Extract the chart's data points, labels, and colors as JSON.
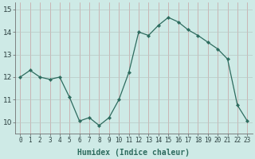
{
  "x": [
    0,
    1,
    2,
    3,
    4,
    5,
    6,
    7,
    8,
    9,
    10,
    11,
    12,
    13,
    14,
    15,
    16,
    17,
    18,
    19,
    20,
    21,
    22,
    23
  ],
  "y": [
    12.0,
    12.3,
    12.0,
    11.9,
    12.0,
    11.1,
    10.05,
    10.2,
    9.85,
    10.2,
    11.0,
    12.2,
    14.0,
    13.85,
    14.3,
    14.65,
    14.45,
    14.1,
    13.85,
    13.55,
    13.25,
    12.8,
    10.75,
    10.05
  ],
  "line_color": "#2d6b5e",
  "marker": "D",
  "marker_size": 2.2,
  "bg_color": "#ceeae6",
  "vgrid_color": "#c8a0a0",
  "hgrid_color": "#b8c8c4",
  "xlabel": "Humidex (Indice chaleur)",
  "xlabel_fontsize": 7,
  "ylim": [
    9.5,
    15.3
  ],
  "yticks": [
    10,
    11,
    12,
    13,
    14,
    15
  ],
  "xtick_fontsize": 5.5,
  "ytick_fontsize": 6.5,
  "line_width": 0.9
}
